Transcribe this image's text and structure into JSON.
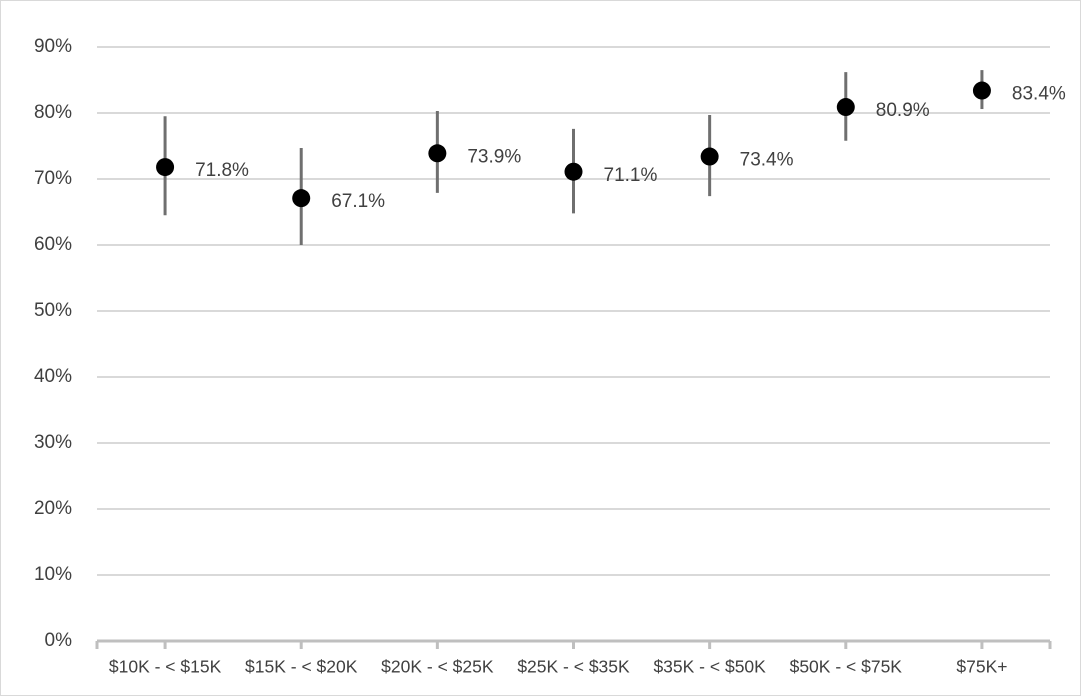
{
  "chart_data": {
    "type": "dot-error",
    "categories": [
      "$10K - < $15K",
      "$15K - < $20K",
      "$20K - < $25K",
      "$25K - < $35K",
      "$35K - < $50K",
      "$50K - < $75K",
      "$75K+"
    ],
    "values": [
      71.8,
      67.1,
      73.9,
      71.1,
      73.4,
      80.9,
      83.4
    ],
    "value_labels": [
      "71.8%",
      "67.1%",
      "73.9%",
      "71.1%",
      "73.4%",
      "80.9%",
      "83.4%"
    ],
    "error_low": [
      64.5,
      60.0,
      67.9,
      64.8,
      67.4,
      75.8,
      80.6
    ],
    "error_high": [
      79.5,
      74.7,
      80.3,
      77.6,
      79.7,
      86.2,
      86.5
    ],
    "color": "#000000",
    "error_color": "#6f6f6f",
    "ylim": [
      0,
      90
    ],
    "yticks": [
      {
        "value": 0,
        "label": "0%"
      },
      {
        "value": 10,
        "label": "10%"
      },
      {
        "value": 20,
        "label": "20%"
      },
      {
        "value": 30,
        "label": "30%"
      },
      {
        "value": 40,
        "label": "40%"
      },
      {
        "value": 50,
        "label": "50%"
      },
      {
        "value": 60,
        "label": "60%"
      },
      {
        "value": 70,
        "label": "70%"
      },
      {
        "value": 80,
        "label": "80%"
      },
      {
        "value": 90,
        "label": "90%"
      }
    ],
    "grid": true
  }
}
